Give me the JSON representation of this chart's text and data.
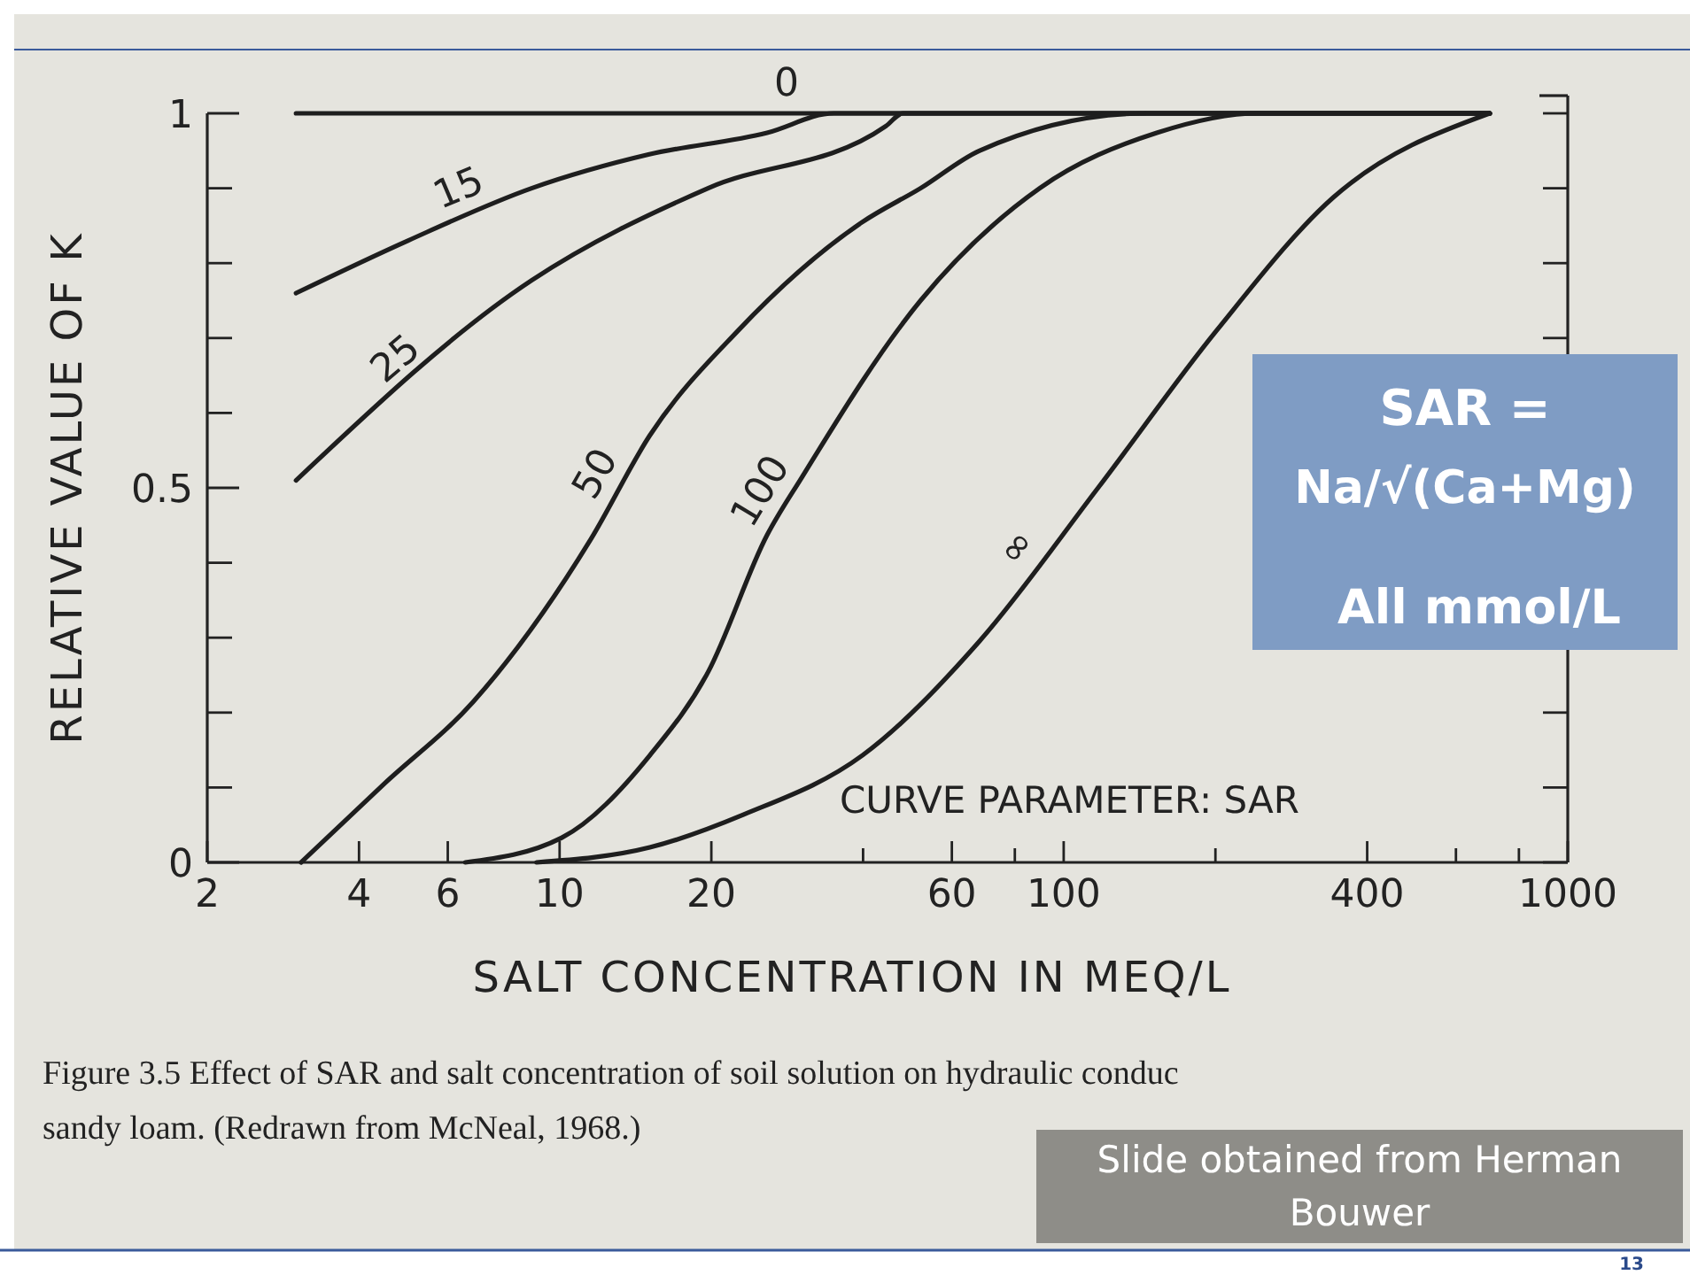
{
  "chart_data": {
    "type": "line",
    "xlabel": "SALT CONCENTRATION IN MEQ/L",
    "ylabel": "RELATIVE VALUE OF K",
    "log": "x",
    "grid": false,
    "legend": false,
    "marker": "none",
    "line_style": "solid",
    "xlim": [
      2,
      1000
    ],
    "ylim": [
      0,
      1
    ],
    "xticks": [
      2,
      4,
      6,
      10,
      20,
      {
        "value": 40,
        "label": null
      },
      60,
      {
        "value": 80,
        "label": null
      },
      100,
      {
        "value": 200,
        "label": null
      },
      400,
      {
        "value": 600,
        "label": null
      },
      {
        "value": 800,
        "label": null
      },
      1000
    ],
    "yticks": [
      0,
      {
        "value": 0.1,
        "label": null
      },
      {
        "value": 0.2,
        "label": null
      },
      {
        "value": 0.3,
        "label": null
      },
      {
        "value": 0.4,
        "label": null
      },
      0.5,
      {
        "value": 0.6,
        "label": null
      },
      {
        "value": 0.7,
        "label": null
      },
      {
        "value": 0.8,
        "label": null
      },
      {
        "value": 0.9,
        "label": null
      },
      1
    ],
    "series": [
      {
        "name": "0",
        "color": "#1e1e1e",
        "x": [
          3,
          700
        ],
        "values": [
          1,
          1
        ]
      },
      {
        "name": "15",
        "color": "#1e1e1e",
        "x": [
          3,
          5,
          8.8,
          15,
          25.8,
          35,
          700
        ],
        "values": [
          0.76,
          0.83,
          0.9,
          0.945,
          0.974,
          1,
          1
        ]
      },
      {
        "name": "25",
        "color": "#1e1e1e",
        "x": [
          3,
          8.8,
          19.7,
          44.4,
          48,
          700
        ],
        "values": [
          0.51,
          0.777,
          0.9,
          0.983,
          1,
          1
        ]
      },
      {
        "name": "50",
        "color": "#1e1e1e",
        "x": [
          3.07,
          4.49,
          6.73,
          11.5,
          15.1,
          22.6,
          39.9,
          52,
          68,
          146,
          700
        ],
        "values": [
          0,
          0.105,
          0.214,
          0.43,
          0.57,
          0.71,
          0.855,
          0.9,
          0.95,
          1,
          1
        ]
      },
      {
        "name": "100",
        "color": "#1e1e1e",
        "x": [
          6.5,
          10.1,
          15.1,
          19.7,
          25.8,
          30.3,
          52,
          89.6,
          153,
          243,
          700
        ],
        "values": [
          0,
          0.033,
          0.143,
          0.254,
          0.437,
          0.515,
          0.75,
          0.9,
          0.974,
          1,
          1
        ]
      },
      {
        "name": "∞",
        "color": "#1e1e1e",
        "x": [
          9,
          15.1,
          23.2,
          39.9,
          68,
          117,
          201,
          343,
          700
        ],
        "values": [
          0,
          0.02,
          0.064,
          0.143,
          0.295,
          0.5,
          0.71,
          0.888,
          1
        ]
      }
    ],
    "annotations": [
      "CURVE PARAMETER: SAR",
      "Figure 3.5 Effect of SAR and salt concentration of soil solution on hydraulic conduc",
      "sandy loam. (Redrawn from McNeal, 1968.)",
      "SAR =",
      "Na/√(Ca+Mg)",
      "All mmol/L",
      "Slide obtained from Herman Bouwer",
      "13"
    ]
  }
}
